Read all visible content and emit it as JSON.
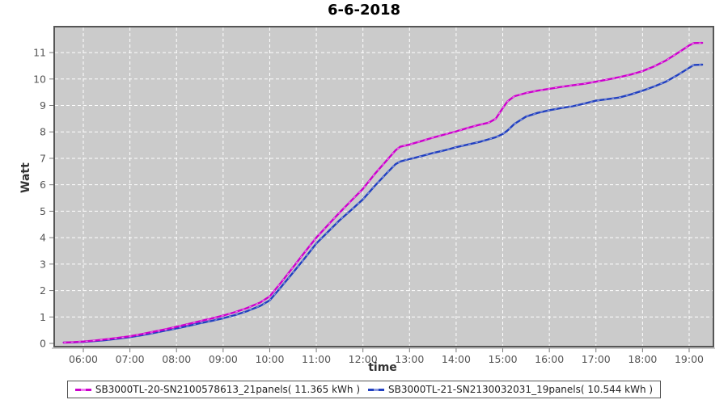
{
  "title": "6-6-2018",
  "axis_titles": {
    "y": "Watt",
    "x": "time"
  },
  "colors": {
    "plot_bg": "#cbcbcb",
    "grid": "#ffffff",
    "border": "#565656",
    "axis_line": "#9a9a9a",
    "tick": "#777777",
    "tick_label": "#555555",
    "series1": "#cc00cc",
    "series1_light": "#ee7bee",
    "series2": "#2140c0",
    "series2_light": "#8b9ade"
  },
  "chart_data": {
    "type": "line",
    "title": "6-6-2018",
    "xlabel": "time",
    "ylabel": "Watt",
    "x_range": [
      5.375,
      19.521
    ],
    "ylim": [
      -0.122,
      11.98
    ],
    "grid": "white dashed, on",
    "legend_position": "bottom-center",
    "x_ticks": [
      {
        "v": 6,
        "label": "06:00"
      },
      {
        "v": 7,
        "label": "07:00"
      },
      {
        "v": 8,
        "label": "08:00"
      },
      {
        "v": 9,
        "label": "09:00"
      },
      {
        "v": 10,
        "label": "10:00"
      },
      {
        "v": 11,
        "label": "11:00"
      },
      {
        "v": 12,
        "label": "12:00"
      },
      {
        "v": 13,
        "label": "13:00"
      },
      {
        "v": 14,
        "label": "14:00"
      },
      {
        "v": 15,
        "label": "15:00"
      },
      {
        "v": 16,
        "label": "16:00"
      },
      {
        "v": 17,
        "label": "17:00"
      },
      {
        "v": 18,
        "label": "18:00"
      },
      {
        "v": 19,
        "label": "19:00"
      }
    ],
    "y_ticks": [
      {
        "v": 0,
        "label": "0"
      },
      {
        "v": 1,
        "label": "1"
      },
      {
        "v": 2,
        "label": "2"
      },
      {
        "v": 3,
        "label": "3"
      },
      {
        "v": 4,
        "label": "4"
      },
      {
        "v": 5,
        "label": "5"
      },
      {
        "v": 6,
        "label": "6"
      },
      {
        "v": 7,
        "label": "7"
      },
      {
        "v": 8,
        "label": "8"
      },
      {
        "v": 9,
        "label": "9"
      },
      {
        "v": 10,
        "label": "10"
      },
      {
        "v": 11,
        "label": "11"
      }
    ],
    "x_shared": [
      5.58,
      5.8,
      6.0,
      6.25,
      6.5,
      6.75,
      7.0,
      7.25,
      7.5,
      7.75,
      8.0,
      8.25,
      8.5,
      8.75,
      9.0,
      9.25,
      9.5,
      9.8,
      10.0,
      10.25,
      10.5,
      10.75,
      11.0,
      11.25,
      11.5,
      11.75,
      12.0,
      12.25,
      12.5,
      12.7,
      12.8,
      13.0,
      13.25,
      13.5,
      13.75,
      14.0,
      14.25,
      14.5,
      14.7,
      14.85,
      15.0,
      15.1,
      15.25,
      15.5,
      15.75,
      16.0,
      16.25,
      16.5,
      16.75,
      17.0,
      17.25,
      17.5,
      17.75,
      18.0,
      18.25,
      18.5,
      18.75,
      19.0,
      19.1,
      19.28
    ],
    "series": [
      {
        "name": "SB3000TL-20-SN2100578613_21panels( 11.365 kWh )",
        "total_kwh": 11.365,
        "color_key": "series1",
        "light_key": "series1_light",
        "y": [
          0.03,
          0.05,
          0.07,
          0.11,
          0.16,
          0.21,
          0.27,
          0.35,
          0.44,
          0.53,
          0.63,
          0.73,
          0.84,
          0.94,
          1.05,
          1.18,
          1.33,
          1.55,
          1.78,
          2.32,
          2.88,
          3.45,
          4.0,
          4.48,
          4.95,
          5.4,
          5.85,
          6.4,
          6.9,
          7.3,
          7.44,
          7.52,
          7.65,
          7.78,
          7.9,
          8.02,
          8.15,
          8.27,
          8.35,
          8.5,
          8.9,
          9.15,
          9.35,
          9.47,
          9.56,
          9.63,
          9.7,
          9.76,
          9.82,
          9.9,
          9.98,
          10.07,
          10.17,
          10.3,
          10.48,
          10.7,
          10.98,
          11.27,
          11.36,
          11.365
        ]
      },
      {
        "name": "SB3000TL-21-SN2130032031_19panels( 10.544 kWh )",
        "total_kwh": 10.544,
        "color_key": "series2",
        "light_key": "series2_light",
        "y": [
          0.03,
          0.04,
          0.06,
          0.09,
          0.13,
          0.18,
          0.24,
          0.31,
          0.39,
          0.48,
          0.57,
          0.66,
          0.76,
          0.85,
          0.95,
          1.07,
          1.21,
          1.42,
          1.63,
          2.15,
          2.68,
          3.22,
          3.78,
          4.22,
          4.66,
          5.05,
          5.45,
          5.95,
          6.42,
          6.78,
          6.88,
          6.97,
          7.08,
          7.2,
          7.3,
          7.42,
          7.52,
          7.62,
          7.72,
          7.8,
          7.92,
          8.05,
          8.3,
          8.58,
          8.72,
          8.82,
          8.9,
          8.97,
          9.07,
          9.18,
          9.24,
          9.3,
          9.42,
          9.56,
          9.72,
          9.9,
          10.15,
          10.42,
          10.53,
          10.544
        ]
      }
    ]
  }
}
